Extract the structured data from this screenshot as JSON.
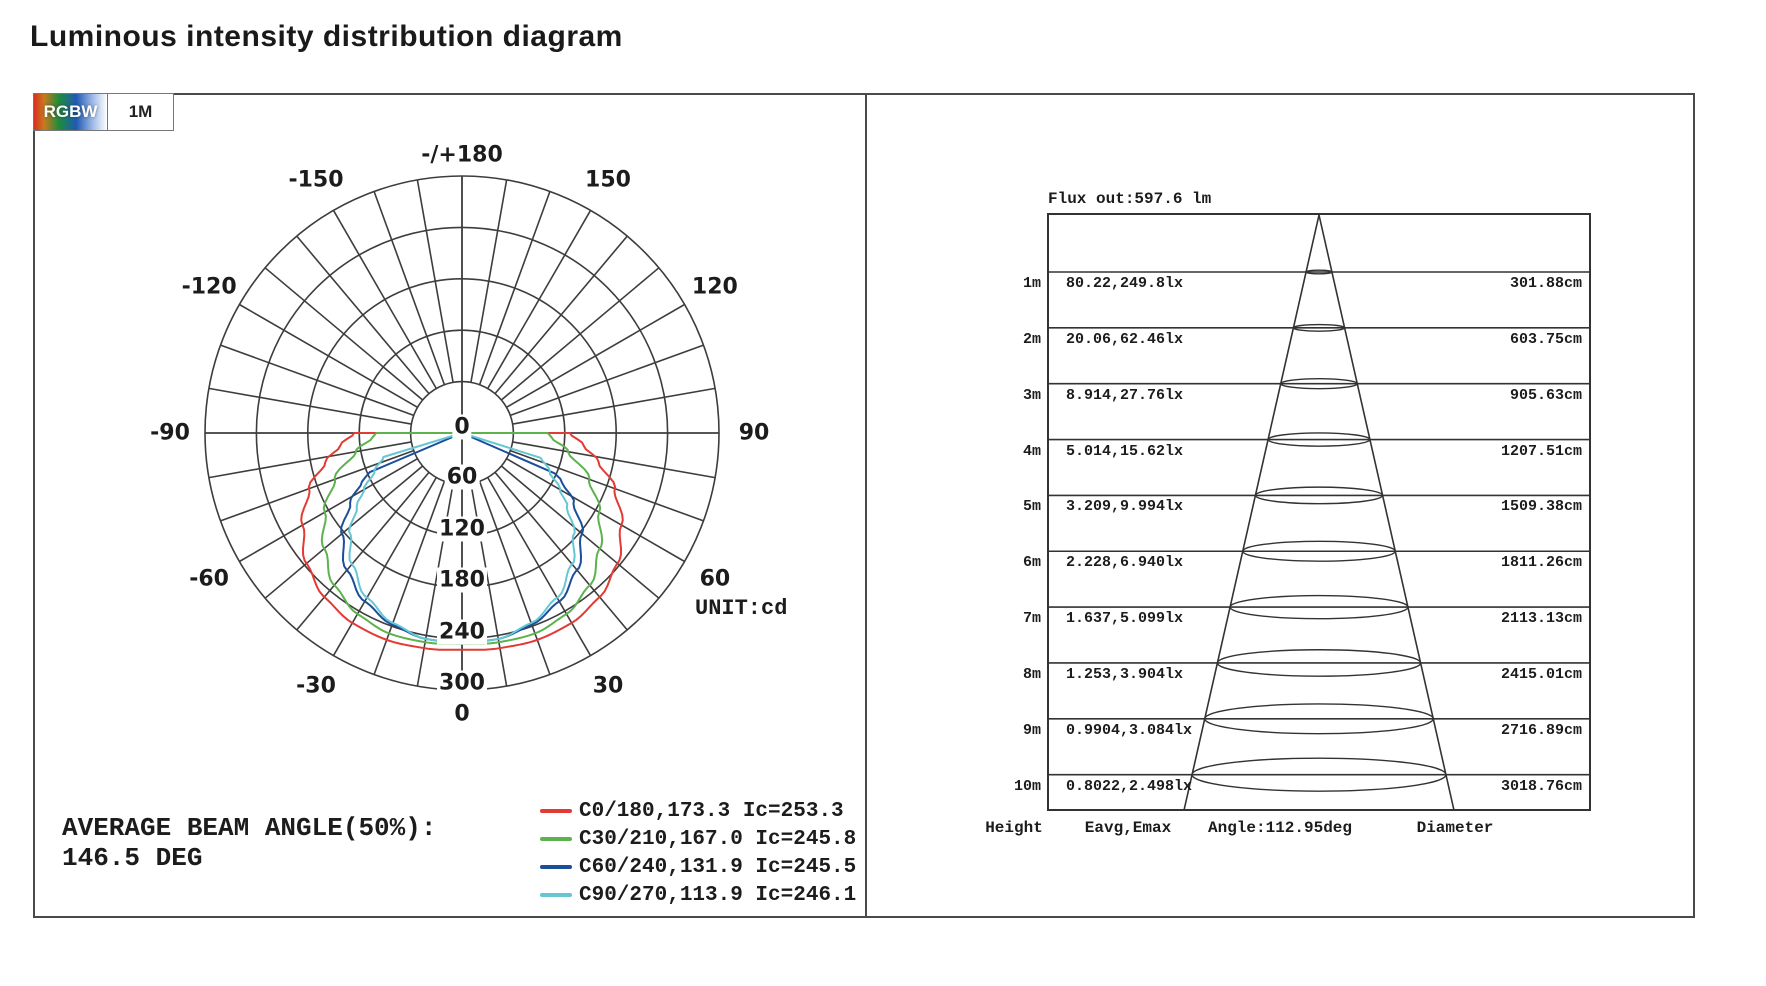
{
  "title": "Luminous intensity distribution diagram",
  "tabs": [
    {
      "label": "RGBW",
      "style": "rgbw-gradient"
    },
    {
      "label": "1M",
      "style": "plain"
    }
  ],
  "polar": {
    "unit_label": "UNIT:cd",
    "avg_beam_angle_line1": "AVERAGE BEAM ANGLE(50%):",
    "avg_beam_angle_line2": "146.5 DEG"
  },
  "legend": {
    "items": [
      {
        "label": "C0/180,173.3 Ic=253.3",
        "color": "#e23a34"
      },
      {
        "label": "C30/210,167.0 Ic=245.8",
        "color": "#5cb34e"
      },
      {
        "label": "C60/240,131.9 Ic=245.5",
        "color": "#1b4e9b"
      },
      {
        "label": "C90/270,113.9 Ic=246.1",
        "color": "#66c6d6"
      }
    ]
  },
  "chart_data": [
    {
      "type": "line",
      "subtype": "polar-luminous-intensity",
      "unit": "cd",
      "radial_ticks_cd": [
        0,
        60,
        120,
        180,
        240,
        300
      ],
      "radial_max_cd": 300,
      "angle_grid_step_deg": 10,
      "angle_labels": [
        {
          "label": "-/+180",
          "deg": 180
        },
        {
          "label": "-150",
          "deg": -150
        },
        {
          "label": "150",
          "deg": 150
        },
        {
          "label": "-120",
          "deg": -120
        },
        {
          "label": "120",
          "deg": 120
        },
        {
          "label": "-90",
          "deg": -90
        },
        {
          "label": "90",
          "deg": 90
        },
        {
          "label": "-60",
          "deg": -60
        },
        {
          "label": "60",
          "deg": 60
        },
        {
          "label": "-30",
          "deg": -30
        },
        {
          "label": "30",
          "deg": 30
        },
        {
          "label": "0",
          "deg": 0
        }
      ],
      "series": [
        {
          "name": "C0/180",
          "beam_angle_deg": 173.3,
          "Ic_cd": 253.3,
          "color": "#e23a34",
          "profile_deg_cd": [
            [
              0,
              253
            ],
            [
              10,
              255
            ],
            [
              20,
              257
            ],
            [
              30,
              256
            ],
            [
              40,
              250
            ],
            [
              50,
              237
            ],
            [
              60,
              215
            ],
            [
              70,
              190
            ],
            [
              78,
              163
            ],
            [
              84,
              143
            ],
            [
              90,
              126
            ]
          ]
        },
        {
          "name": "C30/210",
          "beam_angle_deg": 167.0,
          "Ic_cd": 245.8,
          "color": "#5cb34e",
          "profile_deg_cd": [
            [
              0,
              246
            ],
            [
              10,
              248
            ],
            [
              20,
              249
            ],
            [
              30,
              244
            ],
            [
              40,
              232
            ],
            [
              50,
              210
            ],
            [
              60,
              185
            ],
            [
              70,
              158
            ],
            [
              80,
              126
            ],
            [
              87,
              105
            ],
            [
              90,
              100
            ]
          ]
        },
        {
          "name": "C60/240",
          "beam_angle_deg": 131.9,
          "Ic_cd": 245.5,
          "color": "#1b4e9b",
          "profile_deg_cd": [
            [
              0,
              245
            ],
            [
              10,
              244
            ],
            [
              20,
              238
            ],
            [
              30,
              227
            ],
            [
              40,
              209
            ],
            [
              50,
              183
            ],
            [
              58,
              154
            ],
            [
              64,
              130
            ],
            [
              67,
              117
            ]
          ]
        },
        {
          "name": "C90/270",
          "beam_angle_deg": 113.9,
          "Ic_cd": 246.1,
          "color": "#66c6d6",
          "profile_deg_cd": [
            [
              0,
              246
            ],
            [
              10,
              244
            ],
            [
              20,
              236
            ],
            [
              30,
              222
            ],
            [
              40,
              200
            ],
            [
              48,
              176
            ],
            [
              55,
              150
            ],
            [
              60,
              132
            ],
            [
              66,
              112
            ],
            [
              73,
              96
            ]
          ]
        }
      ],
      "annotations": [
        "UNIT:cd",
        "AVERAGE BEAM ANGLE(50%):",
        "146.5 DEG"
      ]
    },
    {
      "type": "table",
      "subtype": "illuminance-cone-diagram",
      "flux_out_label": "Flux out:597.6 lm",
      "beam_angle_label": "Angle:112.95deg",
      "columns": [
        "Height",
        "Eavg,Emax",
        "Angle:112.95deg",
        "Diameter"
      ],
      "rows": [
        {
          "height": "1m",
          "eavg_emax": "80.22,249.8lx",
          "diameter": "301.88cm"
        },
        {
          "height": "2m",
          "eavg_emax": "20.06,62.46lx",
          "diameter": "603.75cm"
        },
        {
          "height": "3m",
          "eavg_emax": "8.914,27.76lx",
          "diameter": "905.63cm"
        },
        {
          "height": "4m",
          "eavg_emax": "5.014,15.62lx",
          "diameter": "1207.51cm"
        },
        {
          "height": "5m",
          "eavg_emax": "3.209,9.994lx",
          "diameter": "1509.38cm"
        },
        {
          "height": "6m",
          "eavg_emax": "2.228,6.940lx",
          "diameter": "1811.26cm"
        },
        {
          "height": "7m",
          "eavg_emax": "1.637,5.099lx",
          "diameter": "2113.13cm"
        },
        {
          "height": "8m",
          "eavg_emax": "1.253,3.904lx",
          "diameter": "2415.01cm"
        },
        {
          "height": "9m",
          "eavg_emax": "0.9904,3.084lx",
          "diameter": "2716.89cm"
        },
        {
          "height": "10m",
          "eavg_emax": "0.8022,2.498lx",
          "diameter": "3018.76cm"
        }
      ]
    }
  ],
  "colors": {
    "grid": "#3d3d3d",
    "border": "#4a4a4a",
    "text": "#1c1c1c"
  }
}
